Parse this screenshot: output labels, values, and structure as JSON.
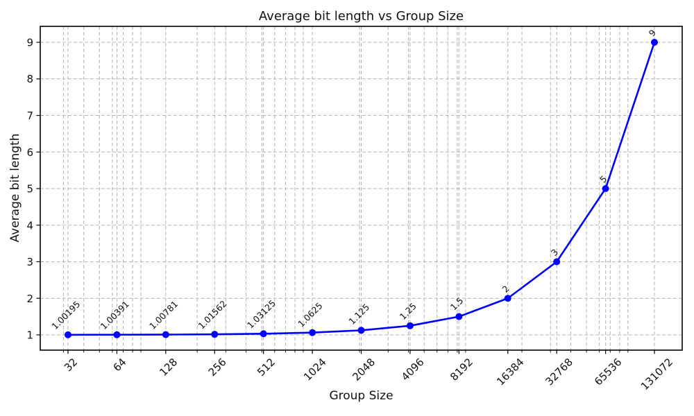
{
  "figure": {
    "title": "Average bit length vs Group Size"
  },
  "chart_data": {
    "type": "line",
    "title": "Average bit length vs Group Size",
    "xlabel": "Group Size",
    "ylabel": "Average bit length",
    "x_scale": "log",
    "categories": [
      32,
      64,
      128,
      256,
      512,
      1024,
      2048,
      4096,
      8192,
      16384,
      32768,
      65536,
      131072
    ],
    "x_tick_labels": [
      "32",
      "64",
      "128",
      "256",
      "512",
      "1024",
      "2048",
      "4096",
      "8192",
      "16384",
      "32768",
      "65536",
      "131072"
    ],
    "values": [
      1.00195,
      1.00391,
      1.00781,
      1.01562,
      1.03125,
      1.0625,
      1.125,
      1.25,
      1.5,
      2,
      3,
      5,
      9
    ],
    "point_labels": [
      "1.00195",
      "1.00391",
      "1.00781",
      "1.01562",
      "1.03125",
      "1.0625",
      "1.125",
      "1.25",
      "1.5",
      "2",
      "3",
      "5",
      "9"
    ],
    "y_ticks": [
      1,
      2,
      3,
      4,
      5,
      6,
      7,
      8,
      9
    ],
    "ylim": [
      0.583,
      9.436
    ],
    "xlim_log2": [
      4.432,
      17.568
    ],
    "grid": {
      "which": "both",
      "style": "dashed",
      "color": "#b4b4b4"
    },
    "minor_gridlines": {
      "base": 10,
      "subs": [
        2,
        3,
        4,
        5,
        6,
        7,
        8,
        9
      ]
    },
    "line_color": "#0000ff",
    "marker": "circle",
    "marker_color": "#0000ff",
    "legend": null,
    "spine_color": "#000000",
    "text_color": "#111111"
  }
}
